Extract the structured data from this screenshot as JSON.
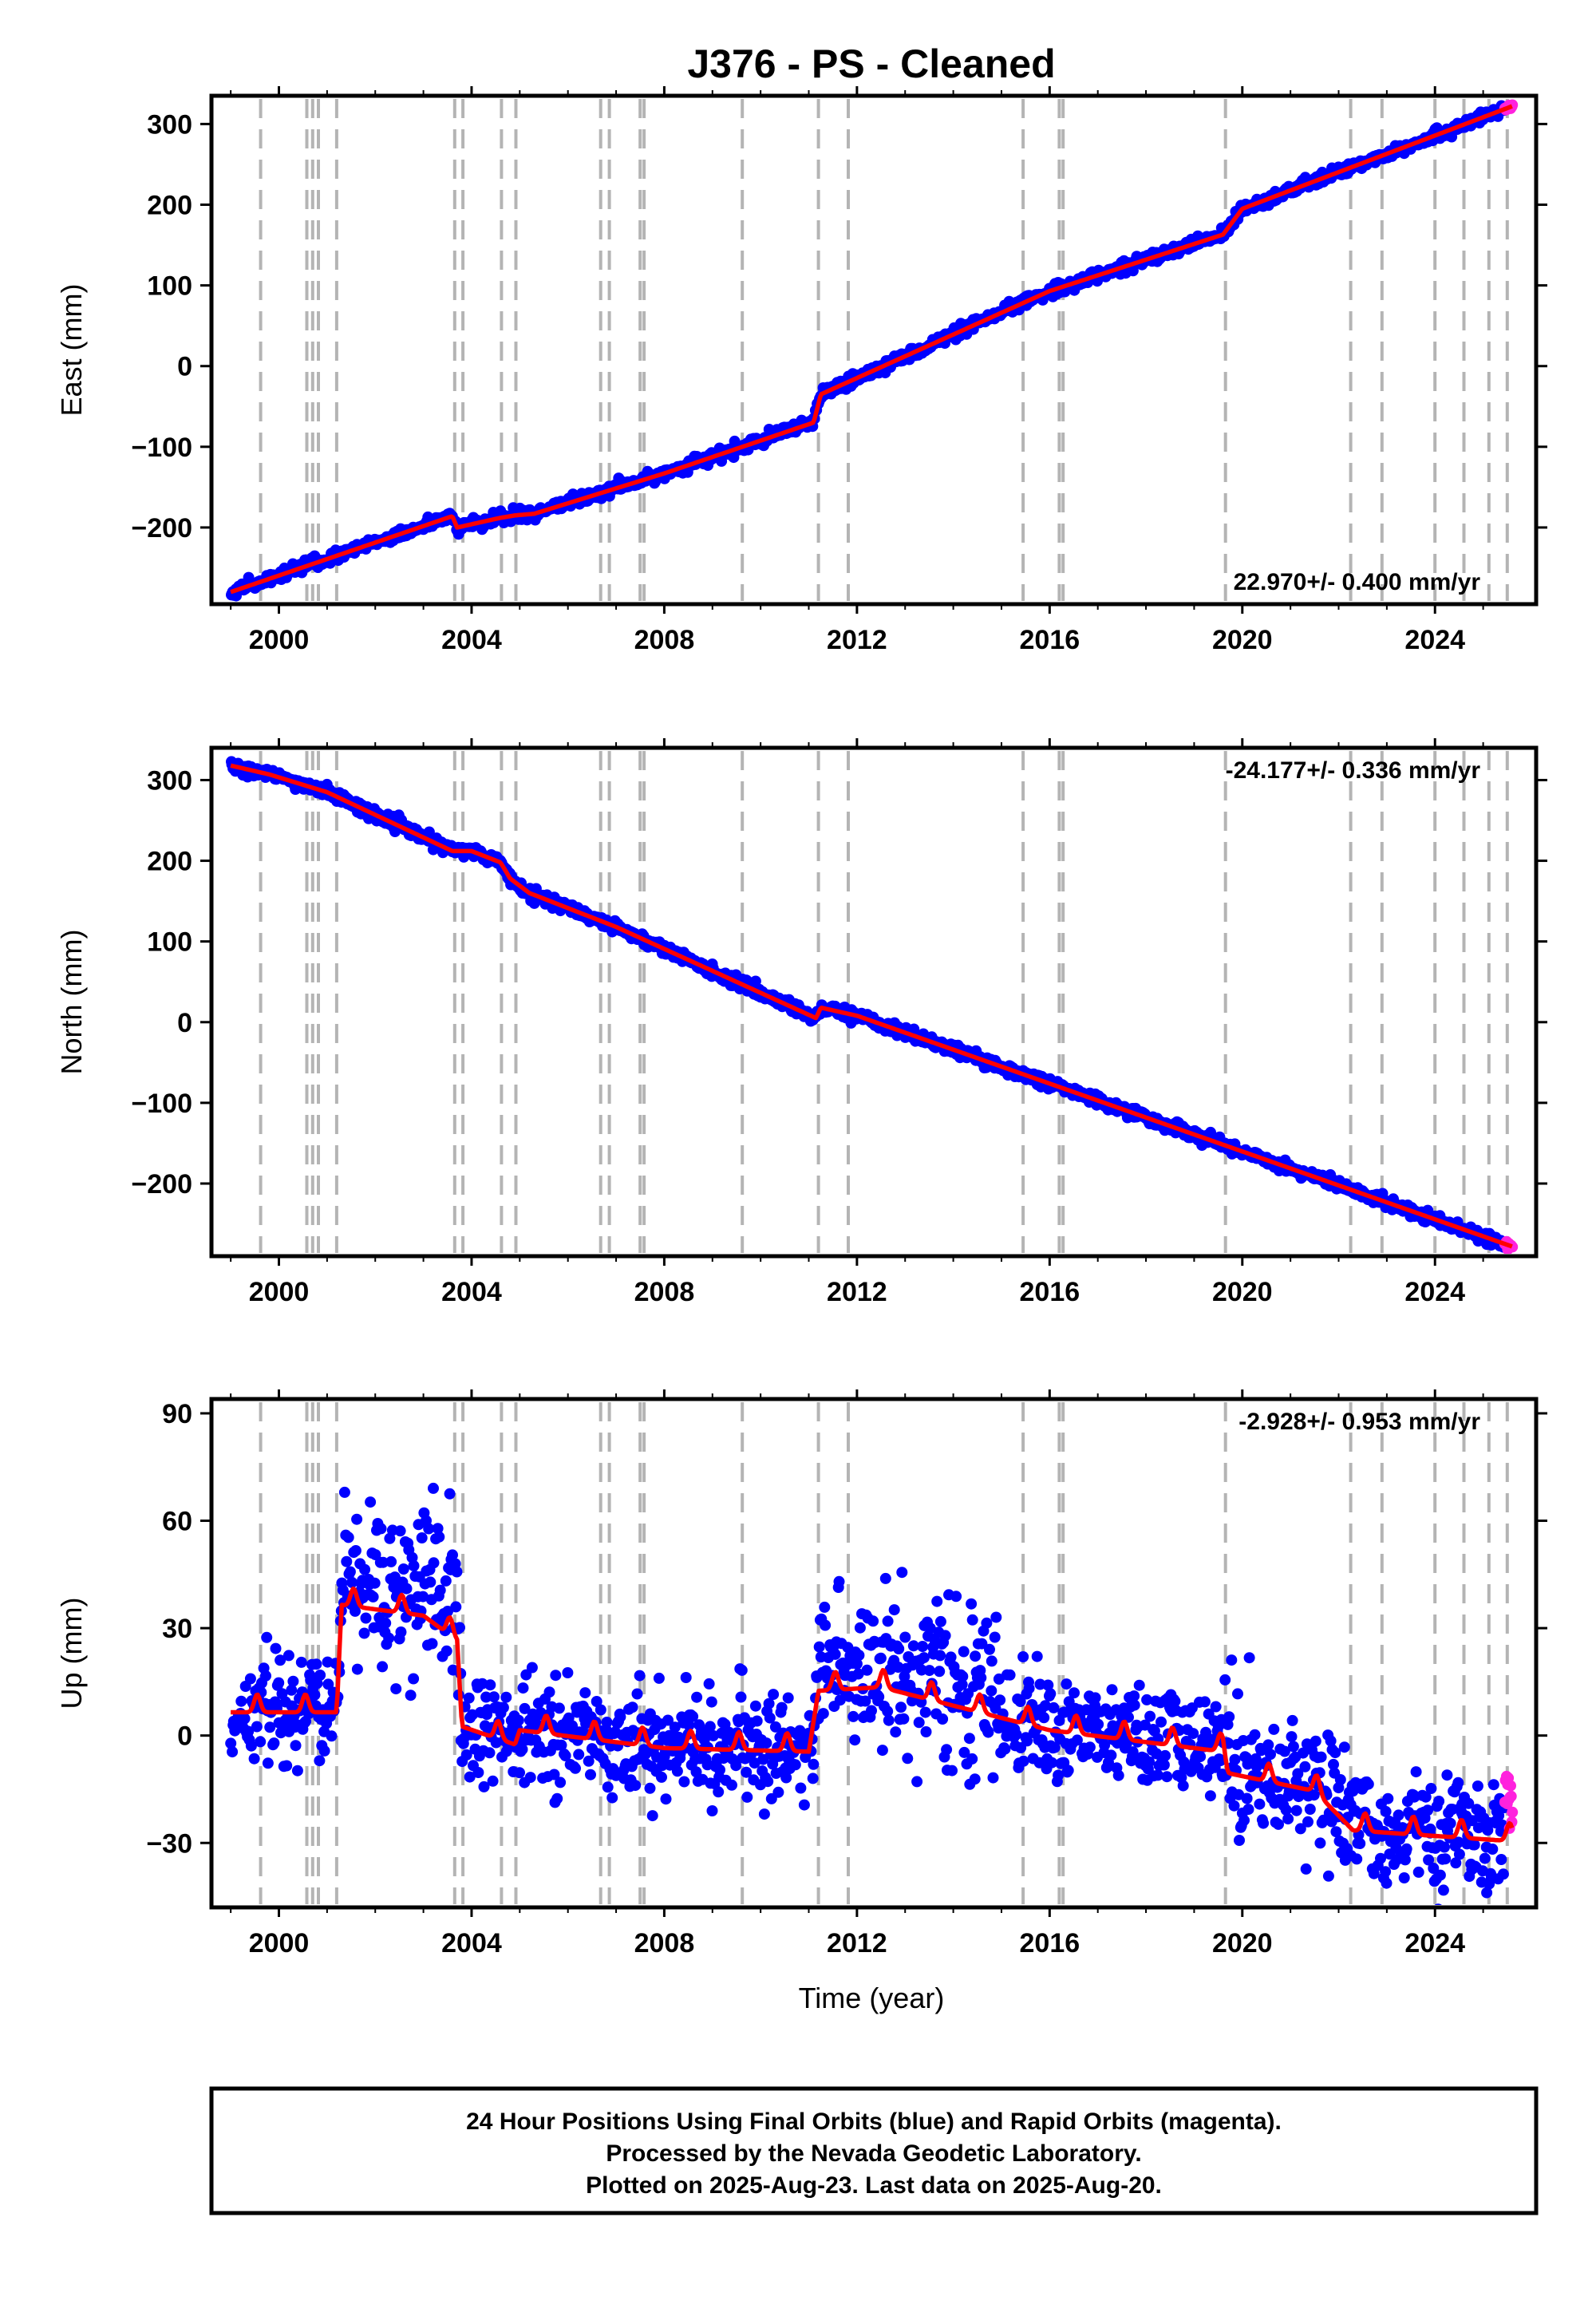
{
  "chart_data": {
    "type": "scatter",
    "title": "J376  - PS - Cleaned",
    "xlabel": "Time (year)",
    "xlim": [
      1998.6,
      2026.1
    ],
    "x_ticks": [
      2000,
      2004,
      2008,
      2012,
      2016,
      2020,
      2024
    ],
    "x_tick_labels": [
      "2000",
      "2004",
      "2008",
      "2012",
      "2016",
      "2020",
      "2024"
    ],
    "equipment_change_years": [
      1999.62,
      2000.58,
      2000.7,
      2000.82,
      2001.2,
      2003.65,
      2003.82,
      2004.62,
      2004.92,
      2006.68,
      2006.86,
      2007.5,
      2007.58,
      2009.62,
      2011.2,
      2011.82,
      2015.45,
      2016.2,
      2016.28,
      2019.65,
      2022.25,
      2022.9,
      2024.0,
      2024.6,
      2025.12,
      2025.5
    ],
    "colors": {
      "final_orbits": "#0000ff",
      "rapid_orbits": "#ff22dd",
      "model": "#ff0000",
      "event_lines": "#b4b4b4"
    },
    "grid": false,
    "panels": [
      {
        "name": "East",
        "ylabel": "East (mm)",
        "ylim": [
          -295,
          335
        ],
        "y_ticks": [
          300,
          200,
          100,
          0,
          -100,
          -200
        ],
        "y_tick_labels": [
          "300",
          "200",
          "100",
          "0",
          "−100",
          "−200"
        ],
        "rate_label": "22.970+/- 0.400 mm/yr",
        "rate_position": "bottom-right",
        "model_knots": [
          [
            1999.0,
            -280
          ],
          [
            2003.6,
            -186
          ],
          [
            2003.7,
            -200
          ],
          [
            2004.6,
            -188
          ],
          [
            2004.9,
            -185
          ],
          [
            2005.3,
            -183
          ],
          [
            2008.0,
            -133
          ],
          [
            2011.1,
            -70
          ],
          [
            2011.25,
            -35
          ],
          [
            2016.0,
            93
          ],
          [
            2019.6,
            163
          ],
          [
            2020.0,
            195
          ],
          [
            2025.6,
            322
          ]
        ],
        "noise_sd": 3.5,
        "rapid_tail_noise_sd": 2
      },
      {
        "name": "North",
        "ylabel": "North (mm)",
        "ylim": [
          -290,
          340
        ],
        "y_ticks": [
          300,
          200,
          100,
          0,
          -100,
          -200
        ],
        "y_tick_labels": [
          "300",
          "200",
          "100",
          "0",
          "−100",
          "−200"
        ],
        "rate_label": "-24.177+/- 0.336 mm/yr",
        "rate_position": "top-right",
        "model_knots": [
          [
            1999.0,
            318
          ],
          [
            1999.8,
            307
          ],
          [
            2001.0,
            285
          ],
          [
            2003.6,
            212
          ],
          [
            2004.0,
            212
          ],
          [
            2004.6,
            198
          ],
          [
            2004.8,
            178
          ],
          [
            2005.2,
            160
          ],
          [
            2007.0,
            118
          ],
          [
            2011.15,
            5
          ],
          [
            2011.25,
            18
          ],
          [
            2012.0,
            8
          ],
          [
            2025.6,
            -278
          ]
        ],
        "noise_sd": 3.5,
        "rapid_tail_noise_sd": 2
      },
      {
        "name": "Up",
        "ylabel": "Up (mm)",
        "ylim": [
          -48,
          94
        ],
        "y_ticks": [
          90,
          60,
          30,
          0,
          -30
        ],
        "y_tick_labels": [
          "90",
          "60",
          "30",
          "0",
          "−30"
        ],
        "rate_label": "-2.928+/- 0.953 mm/yr",
        "rate_position": "top-right",
        "model_knots": [
          [
            1999.0,
            8
          ],
          [
            2001.2,
            8
          ],
          [
            2001.3,
            38
          ],
          [
            2003.0,
            35
          ],
          [
            2003.7,
            28
          ],
          [
            2003.8,
            4
          ],
          [
            2004.9,
            -1
          ],
          [
            2005.0,
            3
          ],
          [
            2008.0,
            -2
          ],
          [
            2011.0,
            -3
          ],
          [
            2011.2,
            14
          ],
          [
            2012.5,
            15
          ],
          [
            2016.0,
            3
          ],
          [
            2019.6,
            -3
          ],
          [
            2019.7,
            -9
          ],
          [
            2021.5,
            -14
          ],
          [
            2022.3,
            -25
          ],
          [
            2025.6,
            -28
          ]
        ],
        "seasonal_amplitude": 5,
        "noise_sd": 7,
        "extra_noise_segments": [
          [
            2001.3,
            2003.8,
            10
          ],
          [
            2011.2,
            2014.9,
            9
          ],
          [
            2019.6,
            2020.2,
            10
          ],
          [
            2021.0,
            2022.2,
            5
          ]
        ],
        "rapid_tail_range": [
          -27,
          -10
        ]
      }
    ]
  },
  "footer": {
    "line1": "24 Hour Positions Using Final Orbits (blue) and Rapid Orbits (magenta).",
    "line2": "Processed by the Nevada Geodetic Laboratory.",
    "line3": "Plotted on 2025-Aug-23. Last data on 2025-Aug-20."
  }
}
